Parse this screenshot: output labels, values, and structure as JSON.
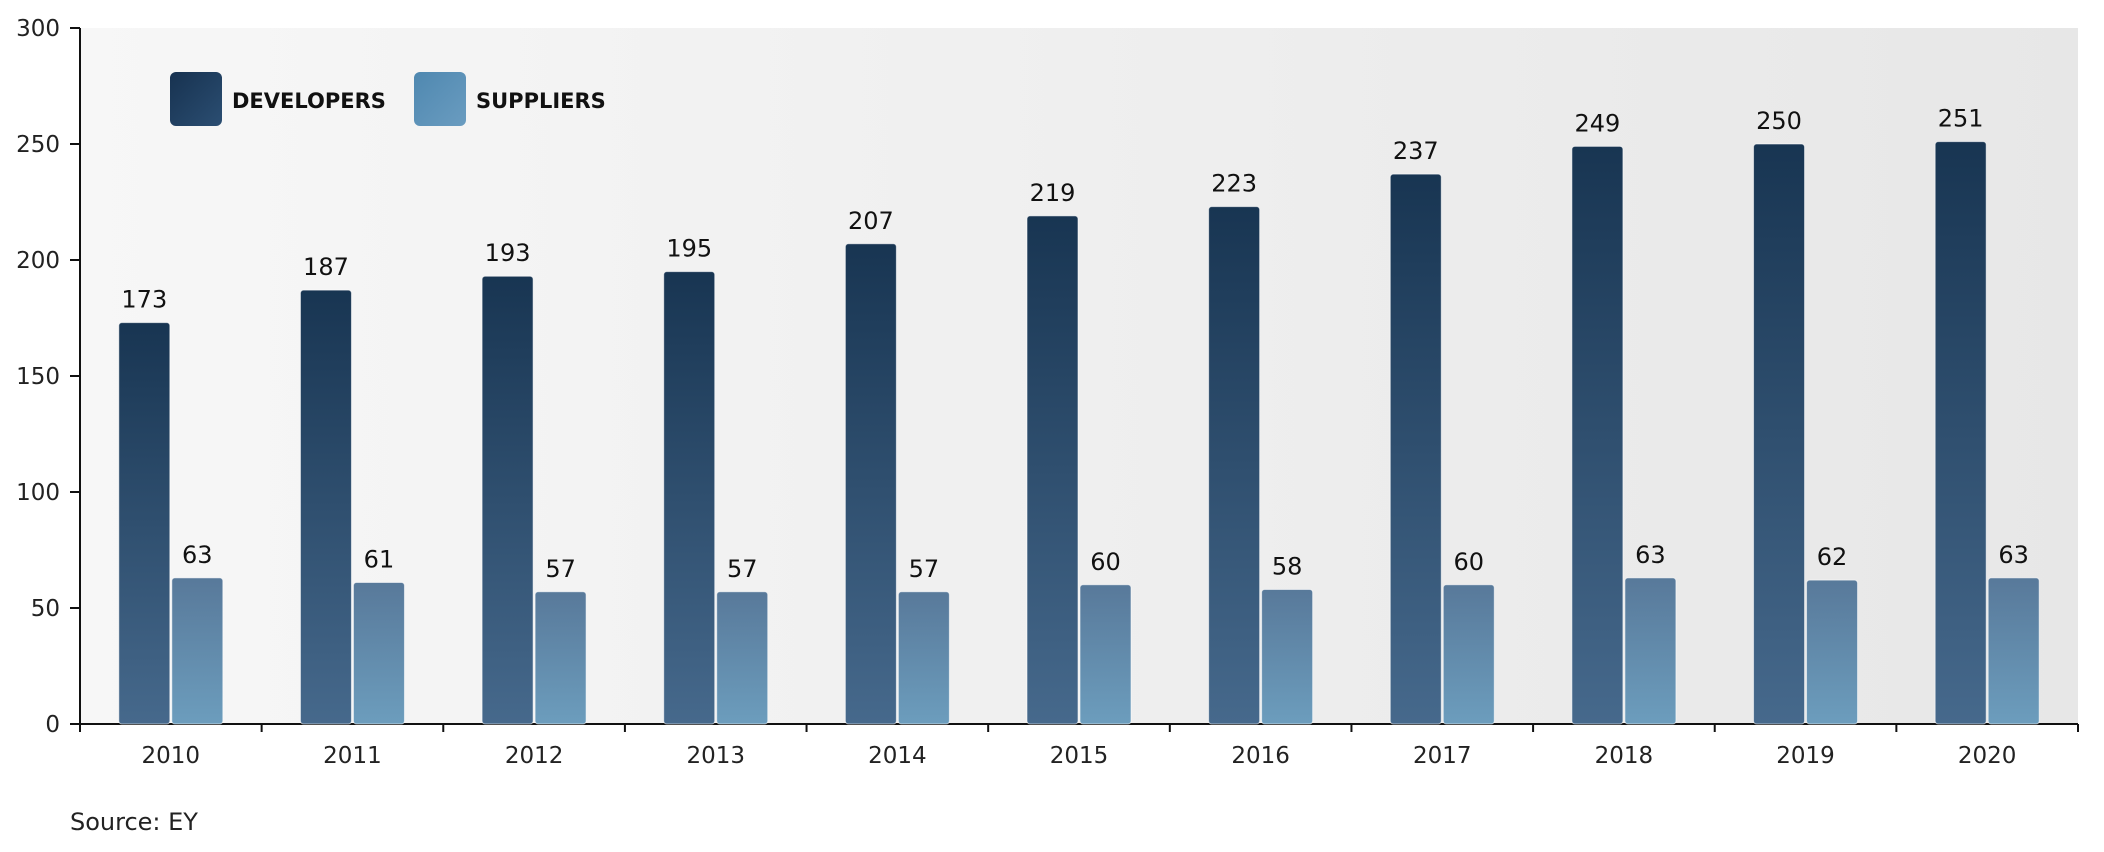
{
  "chart_data": {
    "type": "bar",
    "categories": [
      "2010",
      "2011",
      "2012",
      "2013",
      "2014",
      "2015",
      "2016",
      "2017",
      "2018",
      "2019",
      "2020"
    ],
    "series": [
      {
        "name": "DEVELOPERS",
        "values": [
          173,
          187,
          193,
          195,
          207,
          219,
          223,
          237,
          249,
          250,
          251
        ],
        "color": "#1a3755"
      },
      {
        "name": "SUPPLIERS",
        "values": [
          63,
          61,
          57,
          57,
          57,
          60,
          58,
          60,
          63,
          62,
          63
        ],
        "color": "#5a8db0"
      }
    ],
    "ylim": [
      0,
      300
    ],
    "yticks": [
      "0",
      "50",
      "100",
      "150",
      "200",
      "250",
      "300"
    ],
    "grid": false,
    "legend_position": "top-left",
    "source": "Source: EY"
  }
}
